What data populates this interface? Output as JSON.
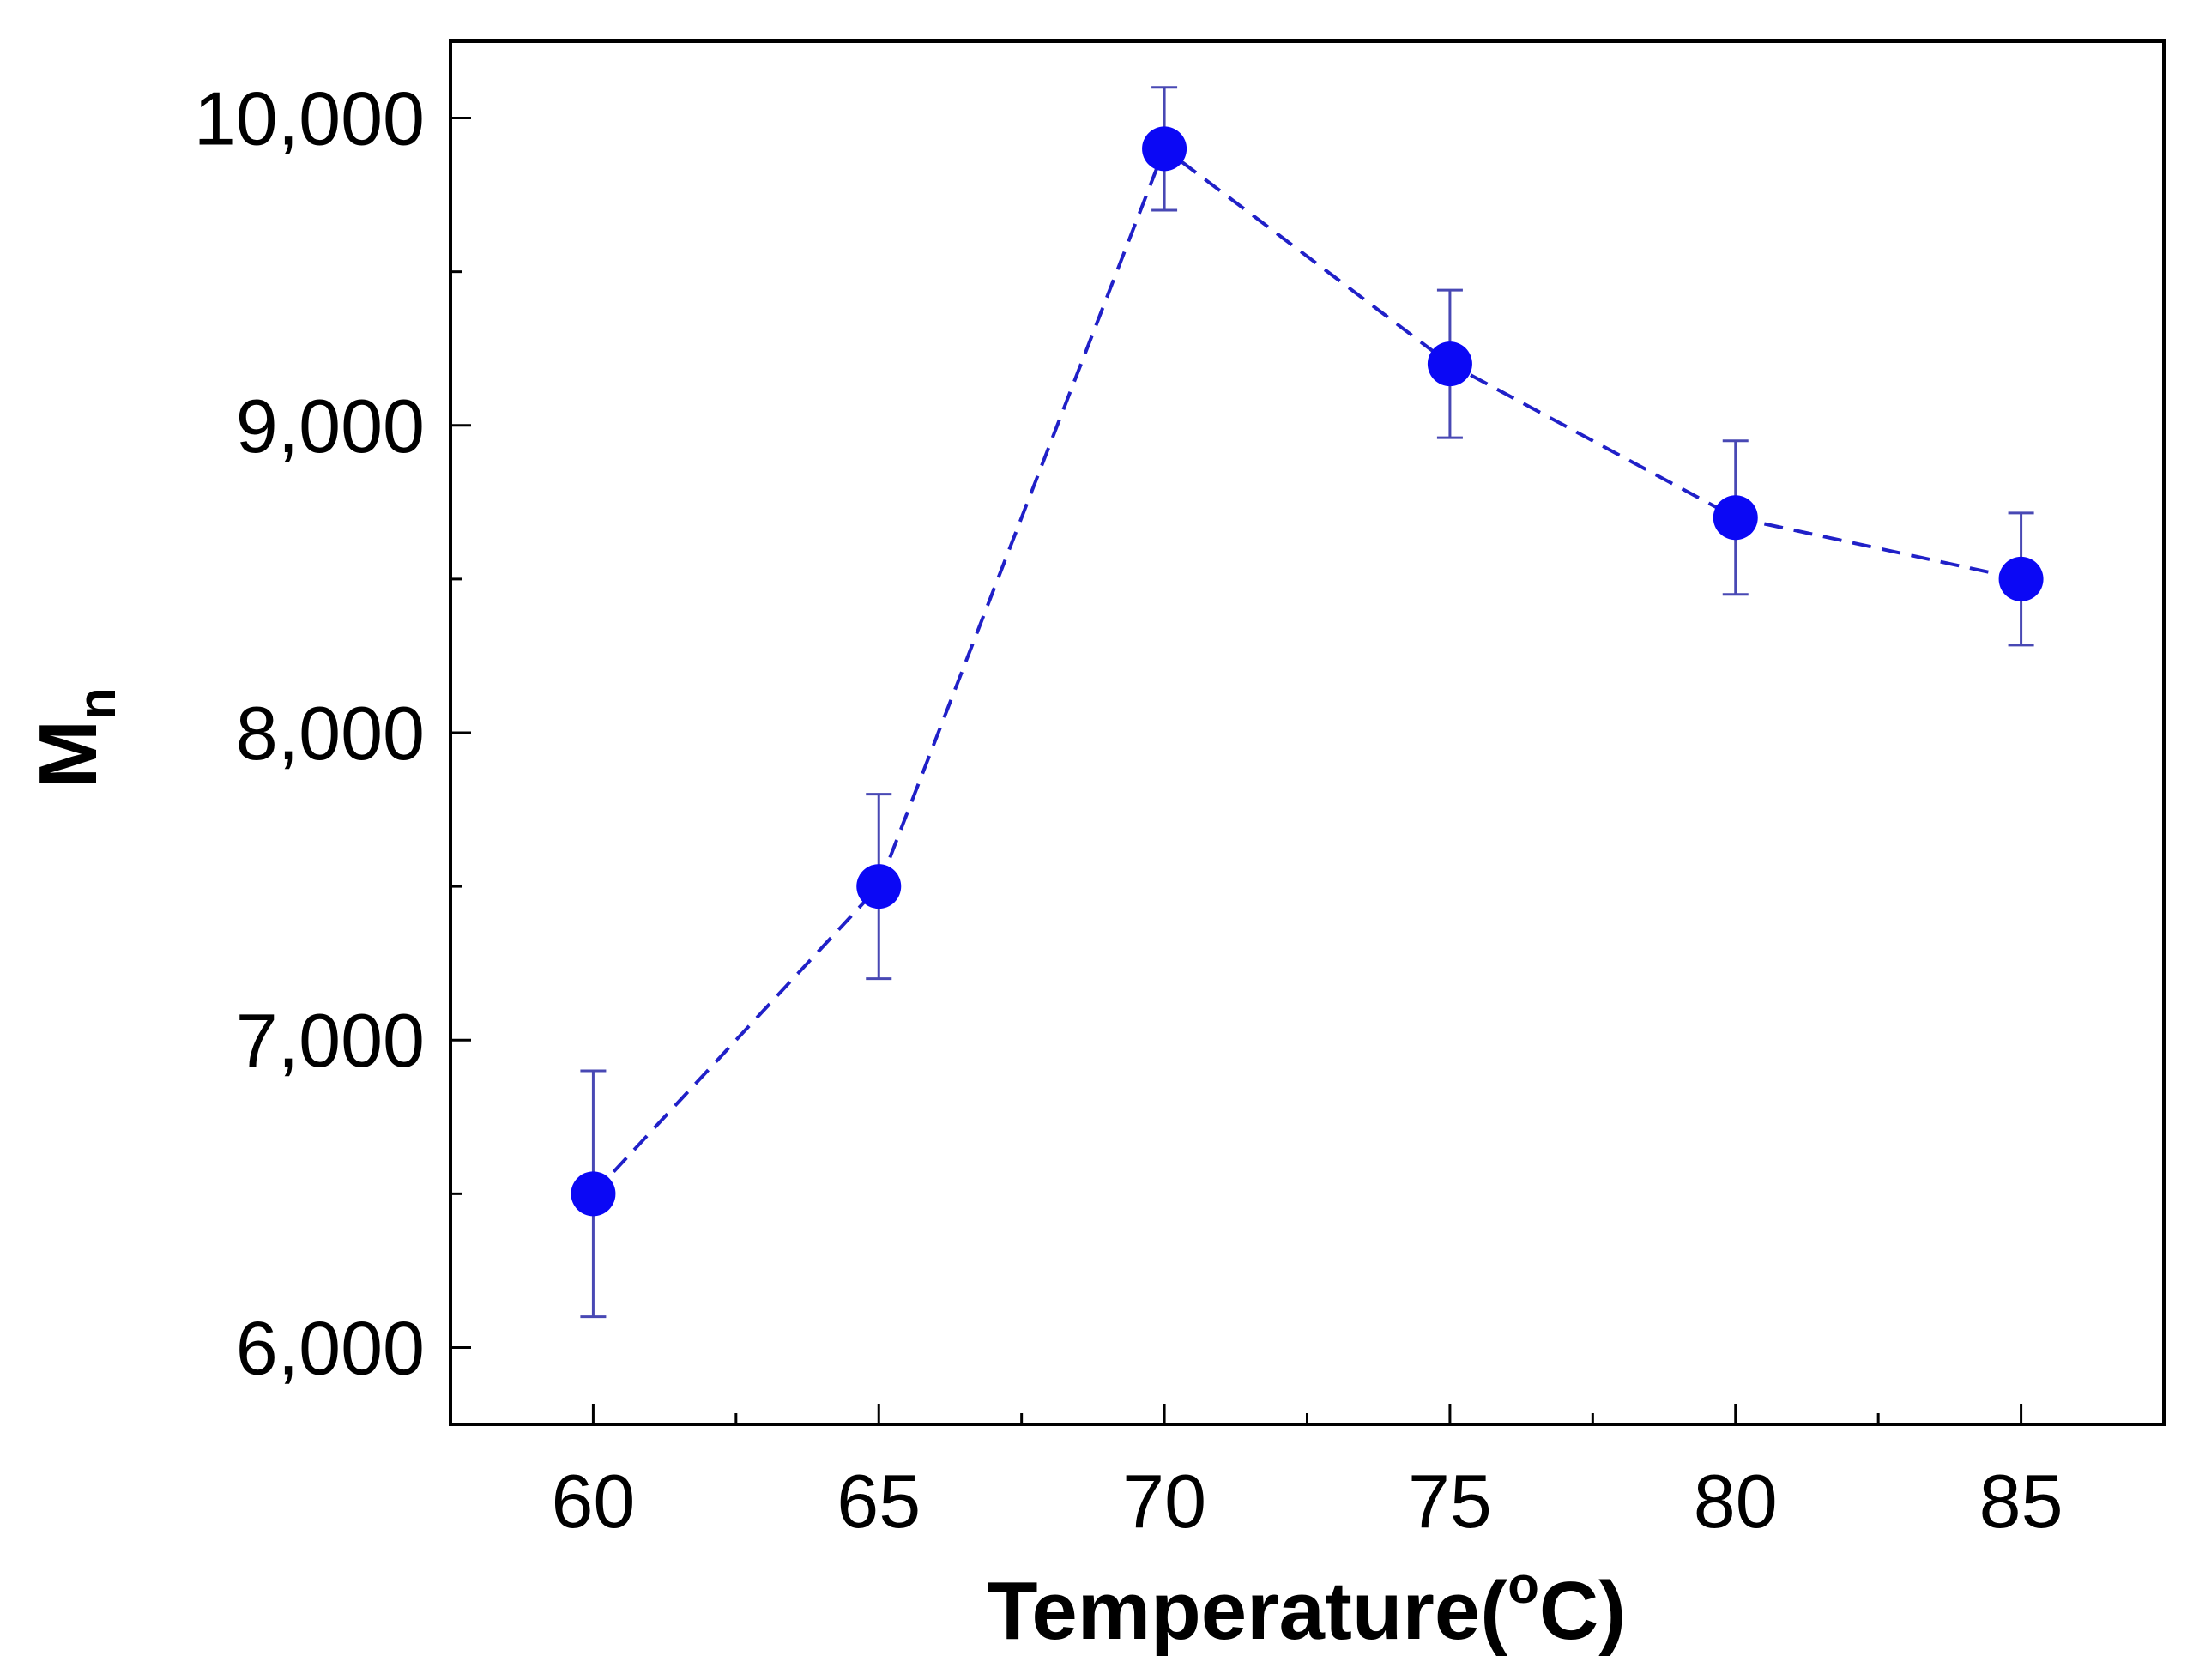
{
  "chart_data": {
    "type": "scatter",
    "title": "",
    "xlabel": "Temperature(",
    "xlabel_superscript": "o",
    "xlabel_suffix": "C)",
    "ylabel": "M",
    "ylabel_subscript": "n",
    "xlim": [
      57.5,
      87.5
    ],
    "ylim": [
      5750,
      10250
    ],
    "x_ticks": [
      60,
      65,
      70,
      75,
      80,
      85
    ],
    "x_tick_labels": [
      "60",
      "65",
      "70",
      "75",
      "80",
      "85"
    ],
    "x_minor_ticks": [
      62.5,
      67.5,
      72.5,
      77.5,
      82.5
    ],
    "y_ticks": [
      6000,
      7000,
      8000,
      9000,
      10000
    ],
    "y_tick_labels": [
      "6,000",
      "7,000",
      "8,000",
      "9,000",
      "10,000"
    ],
    "y_minor_ticks": [
      6500,
      7500,
      8500,
      9500
    ],
    "grid": false,
    "series": [
      {
        "name": "Mn",
        "line_style": "dashed",
        "marker": "circle",
        "x": [
          60,
          65,
          70,
          75,
          80,
          85
        ],
        "y": [
          6500,
          7500,
          9900,
          9200,
          8700,
          8500
        ],
        "error": [
          400,
          300,
          200,
          240,
          250,
          215
        ]
      }
    ],
    "colors": {
      "marker": "#0b08f5",
      "line": "#2020c8",
      "error_bar": "#4848b4",
      "axis": "#000000"
    }
  }
}
